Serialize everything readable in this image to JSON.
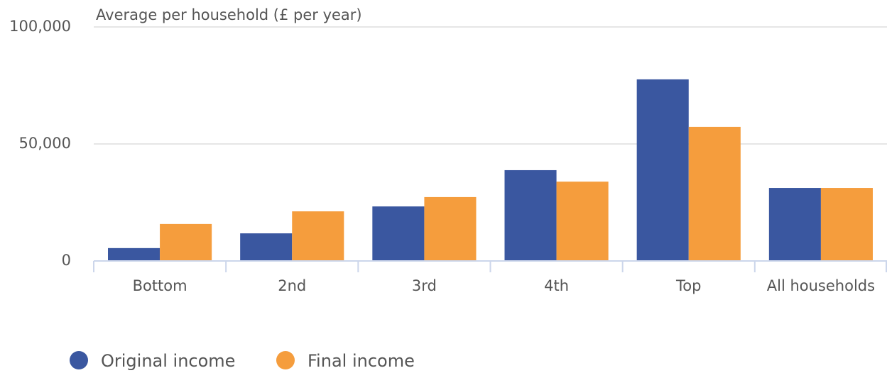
{
  "chart_data": {
    "type": "bar",
    "title": "Average per household (£ per year)",
    "categories": [
      "Bottom",
      "2nd",
      "3rd",
      "4th",
      "Top",
      "All households"
    ],
    "series": [
      {
        "name": "Original income",
        "color": "#3a57a0",
        "values": [
          5500,
          11800,
          23300,
          38800,
          77600,
          31200
        ]
      },
      {
        "name": "Final income",
        "color": "#f59d3d",
        "values": [
          15800,
          21200,
          27300,
          33900,
          57300,
          31200
        ]
      }
    ],
    "ylim": [
      0,
      100000
    ],
    "yticks": [
      {
        "value": 0,
        "label": "0"
      },
      {
        "value": 50000,
        "label": "50,000"
      },
      {
        "value": 100000,
        "label": "100,000"
      }
    ],
    "grid": true,
    "legend": "bottom"
  }
}
